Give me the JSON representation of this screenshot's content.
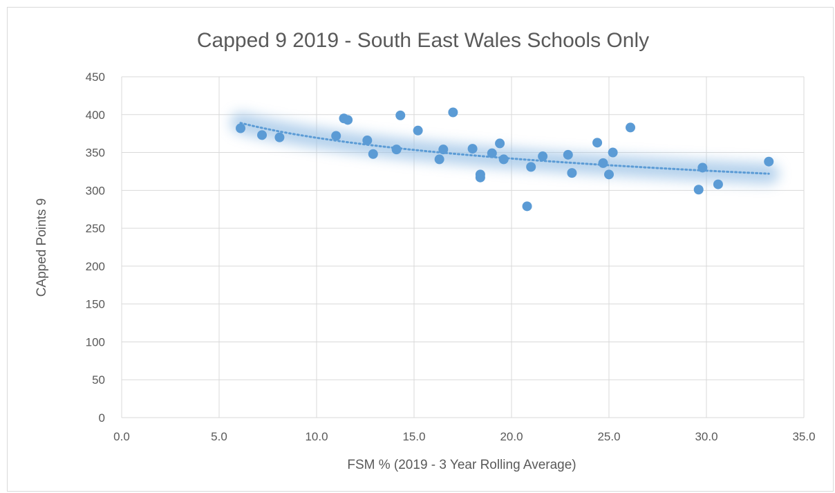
{
  "chart_data": {
    "type": "scatter",
    "title": "Capped 9 2019 - South East Wales Schools Only",
    "xlabel": "FSM % (2019 - 3 Year Rolling Average)",
    "ylabel": "CApped Points 9",
    "xlim": [
      0,
      35
    ],
    "ylim": [
      0,
      450
    ],
    "x_ticks": [
      "0.0",
      "5.0",
      "10.0",
      "15.0",
      "20.0",
      "25.0",
      "30.0",
      "35.0"
    ],
    "y_ticks": [
      "0",
      "50",
      "100",
      "150",
      "200",
      "250",
      "300",
      "350",
      "400",
      "450"
    ],
    "grid": true,
    "legend": "none",
    "marker_color": "#5b9bd5",
    "trendline": {
      "type": "logarithmic",
      "style": "dotted",
      "x_range": [
        6.1,
        33.2
      ],
      "y_range": [
        389,
        322
      ],
      "color": "#5b9bd5"
    },
    "points": [
      {
        "x": 6.1,
        "y": 382
      },
      {
        "x": 7.2,
        "y": 373
      },
      {
        "x": 8.1,
        "y": 370
      },
      {
        "x": 11.0,
        "y": 372
      },
      {
        "x": 11.4,
        "y": 395
      },
      {
        "x": 11.6,
        "y": 393
      },
      {
        "x": 12.6,
        "y": 366
      },
      {
        "x": 12.9,
        "y": 348
      },
      {
        "x": 14.1,
        "y": 354
      },
      {
        "x": 14.3,
        "y": 399
      },
      {
        "x": 15.2,
        "y": 379
      },
      {
        "x": 16.3,
        "y": 341
      },
      {
        "x": 16.5,
        "y": 354
      },
      {
        "x": 17.0,
        "y": 403
      },
      {
        "x": 18.0,
        "y": 355
      },
      {
        "x": 18.4,
        "y": 321
      },
      {
        "x": 18.4,
        "y": 317
      },
      {
        "x": 19.0,
        "y": 349
      },
      {
        "x": 19.4,
        "y": 362
      },
      {
        "x": 19.6,
        "y": 341
      },
      {
        "x": 20.8,
        "y": 279
      },
      {
        "x": 21.0,
        "y": 331
      },
      {
        "x": 21.6,
        "y": 345
      },
      {
        "x": 22.9,
        "y": 347
      },
      {
        "x": 23.1,
        "y": 323
      },
      {
        "x": 24.4,
        "y": 363
      },
      {
        "x": 24.7,
        "y": 336
      },
      {
        "x": 25.0,
        "y": 321
      },
      {
        "x": 25.2,
        "y": 350
      },
      {
        "x": 26.1,
        "y": 383
      },
      {
        "x": 29.6,
        "y": 301
      },
      {
        "x": 29.8,
        "y": 330
      },
      {
        "x": 30.6,
        "y": 308
      },
      {
        "x": 33.2,
        "y": 338
      }
    ]
  }
}
